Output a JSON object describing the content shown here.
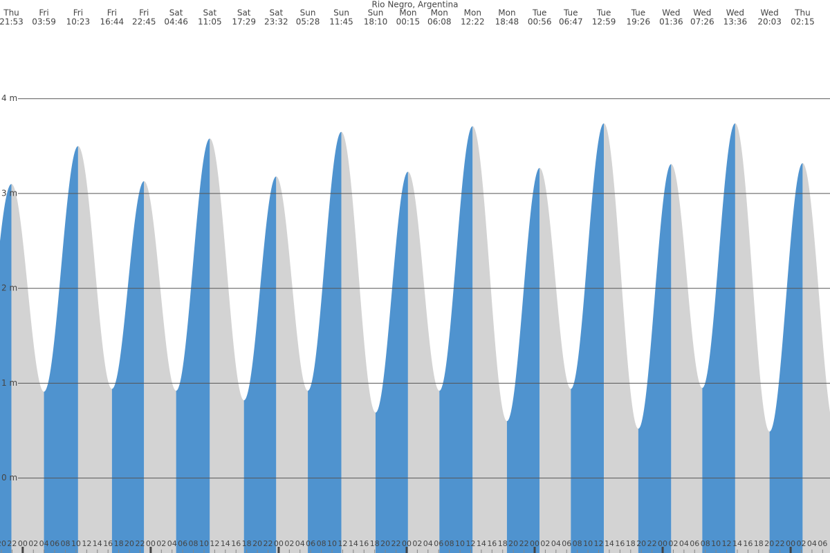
{
  "chart_data": {
    "type": "tide-area",
    "title": "Rio Negro, Argentina",
    "days": [
      "Thu",
      "Fri",
      "Fri",
      "Fri",
      "Fri",
      "Sat",
      "Sat",
      "Sat",
      "Sat",
      "Sun",
      "Sun",
      "Sun",
      "Mon",
      "Mon",
      "Mon",
      "Mon",
      "Tue",
      "Tue",
      "Tue",
      "Tue",
      "Wed",
      "Wed",
      "Wed",
      "Wed",
      "Thu"
    ],
    "times": [
      "21:53",
      "03:59",
      "10:23",
      "16:44",
      "22:45",
      "04:46",
      "11:05",
      "17:29",
      "23:32",
      "05:28",
      "11:45",
      "18:10",
      "00:15",
      "06:08",
      "12:22",
      "18:48",
      "00:56",
      "06:47",
      "12:59",
      "19:26",
      "01:36",
      "07:26",
      "13:36",
      "20:03",
      "02:15"
    ],
    "values": [
      3.1,
      0.91,
      3.5,
      0.94,
      3.13,
      0.92,
      3.58,
      0.82,
      3.18,
      0.92,
      3.65,
      0.69,
      3.23,
      0.92,
      3.71,
      0.6,
      3.27,
      0.94,
      3.74,
      0.52,
      3.31,
      0.95,
      3.74,
      0.49,
      3.32
    ],
    "hour_labels": [
      "20",
      "22",
      "00",
      "02",
      "04",
      "06",
      "08",
      "10",
      "12",
      "14",
      "16",
      "18",
      "20",
      "22",
      "00",
      "02",
      "04",
      "06",
      "08",
      "10",
      "12",
      "14",
      "16",
      "18",
      "20",
      "22",
      "00",
      "02",
      "04",
      "06",
      "08",
      "10",
      "12",
      "14",
      "16",
      "18",
      "20",
      "22",
      "00",
      "02",
      "04",
      "06",
      "08",
      "10",
      "12",
      "14",
      "16",
      "18",
      "20",
      "22",
      "00",
      "02",
      "04",
      "06",
      "08",
      "10",
      "12",
      "14",
      "16",
      "18",
      "20",
      "22",
      "00",
      "02",
      "04",
      "06",
      "08",
      "10",
      "12",
      "14",
      "16",
      "18",
      "20",
      "22",
      "00",
      "02",
      "04",
      "06"
    ],
    "ylim": [
      -0.79,
      5.04
    ],
    "yticks": [
      {
        "value": 0,
        "label": "0 m"
      },
      {
        "value": 1,
        "label": "1 m"
      },
      {
        "value": 2,
        "label": "2 m"
      },
      {
        "value": 3,
        "label": "3 m"
      },
      {
        "value": 4,
        "label": "4 m"
      }
    ],
    "colors": {
      "rising": "#4f93cf",
      "falling": "#d3d3d3"
    },
    "grid": true
  }
}
